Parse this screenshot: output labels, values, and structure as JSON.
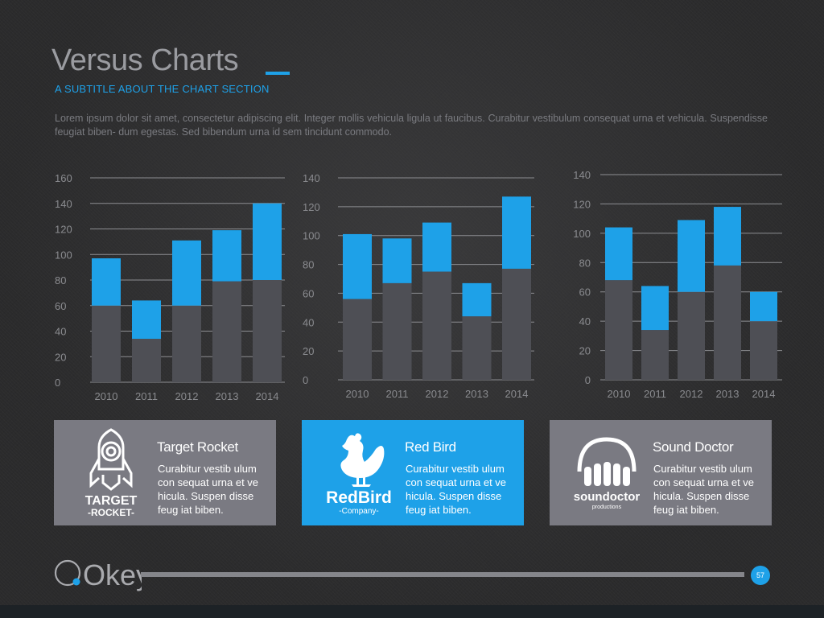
{
  "header": {
    "title": "Versus Charts",
    "subtitle": "A SUBTITLE ABOUT THE CHART SECTION",
    "body": "Lorem ipsum dolor sit amet, consectetur adipiscing elit. Integer mollis vehicula ligula ut faucibus. Curabitur vestibulum consequat urna et vehicula. Suspendisse feugiat biben- dum egestas. Sed bibendum urna id sem tincidunt commodo."
  },
  "colors": {
    "accent": "#1ea1e8",
    "bar_base": "#4e4f55",
    "card_grey": "#7a7a82",
    "text_muted": "#7a7b80"
  },
  "chart_data": [
    {
      "type": "bar",
      "stacked": true,
      "categories": [
        "2010",
        "2011",
        "2012",
        "2013",
        "2014"
      ],
      "series": [
        {
          "color": "#4e4f55",
          "values": [
            60,
            34,
            60,
            79,
            80
          ]
        },
        {
          "color": "#1ea1e8",
          "values": [
            37,
            30,
            51,
            40,
            60
          ]
        }
      ],
      "yticks": [
        0,
        20,
        40,
        60,
        80,
        100,
        120,
        140,
        160
      ],
      "ylim": [
        0,
        160
      ],
      "grid": true,
      "tick_side": "left"
    },
    {
      "type": "bar",
      "stacked": true,
      "categories": [
        "2010",
        "2011",
        "2012",
        "2013",
        "2014"
      ],
      "series": [
        {
          "color": "#4e4f55",
          "values": [
            56,
            67,
            75,
            44,
            77
          ]
        },
        {
          "color": "#1ea1e8",
          "values": [
            45,
            31,
            34,
            23,
            50
          ]
        }
      ],
      "yticks": [
        0,
        20,
        40,
        60,
        80,
        100,
        120,
        140
      ],
      "ylim": [
        0,
        140
      ],
      "grid": true,
      "tick_side": "left"
    },
    {
      "type": "bar",
      "stacked": true,
      "categories": [
        "2010",
        "2011",
        "2012",
        "2013",
        "2014"
      ],
      "series": [
        {
          "color": "#4e4f55",
          "values": [
            68,
            34,
            60,
            78,
            40
          ]
        },
        {
          "color": "#1ea1e8",
          "values": [
            36,
            30,
            49,
            40,
            20
          ]
        }
      ],
      "yticks": [
        0,
        20,
        40,
        60,
        80,
        100,
        120,
        140
      ],
      "ylim": [
        0,
        140
      ],
      "grid": true,
      "tick_side": "left"
    }
  ],
  "cards": [
    {
      "title": "Target Rocket",
      "text": "Curabitur vestib ulum con sequat urna et ve hicula. Suspen disse feug iat biben.",
      "logo_icon": "rocket-icon",
      "logo_line1": "TARGET",
      "logo_line2": "-ROCKET-"
    },
    {
      "title": "Red Bird",
      "text": "Curabitur vestib ulum con sequat urna et ve hicula. Suspen disse feug iat biben.",
      "logo_icon": "rooster-icon",
      "logo_line1": "RedBird",
      "logo_line2": "-Company-"
    },
    {
      "title": "Sound Doctor",
      "text": "Curabitur vestib ulum con sequat urna et ve hicula. Suspen disse feug iat biben.",
      "logo_icon": "headphones-icon",
      "logo_line1": "soundoctor",
      "logo_line2": "productions"
    }
  ],
  "footer": {
    "logo_text": "Okey",
    "page_number": "57"
  }
}
